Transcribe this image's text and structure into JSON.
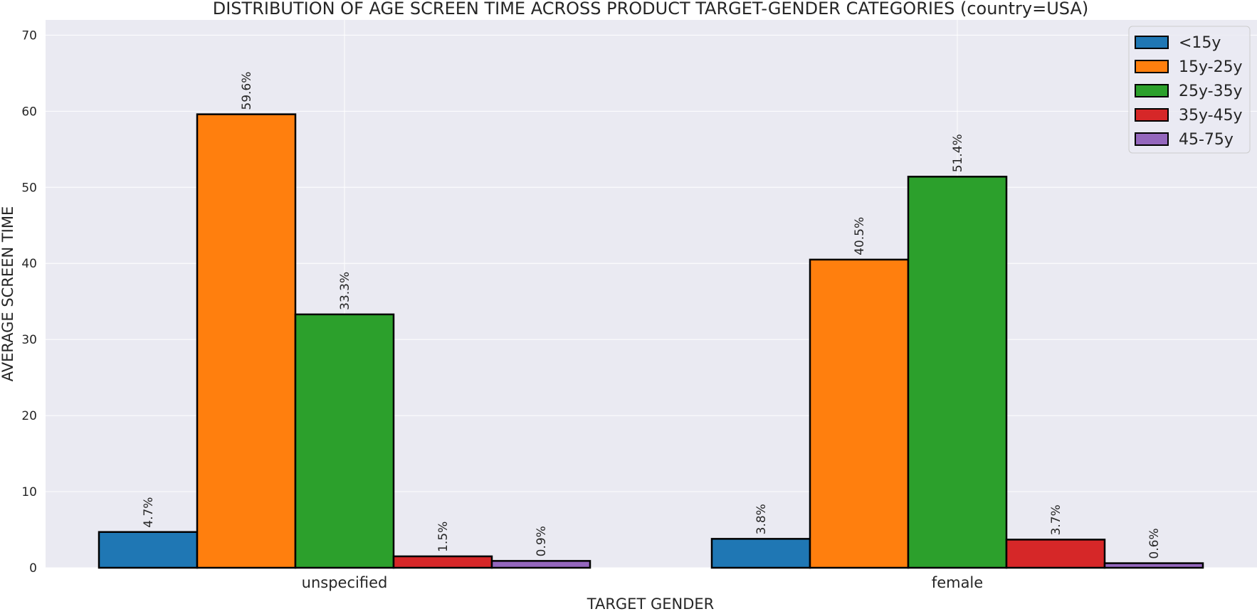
{
  "chart_data": {
    "type": "bar",
    "title": "DISTRIBUTION OF AGE SCREEN TIME ACROSS PRODUCT TARGET-GENDER CATEGORIES (country=USA)",
    "xlabel": "TARGET GENDER",
    "ylabel": "AVERAGE SCREEN TIME",
    "categories": [
      "unspecified",
      "female"
    ],
    "ylim": [
      0,
      72
    ],
    "yticks": [
      0,
      10,
      20,
      30,
      40,
      50,
      60,
      70
    ],
    "grid": true,
    "legend_position": "top-right",
    "series": [
      {
        "name": "<15y",
        "color": "#1f77b4",
        "values": [
          4.7,
          3.8
        ],
        "labels": [
          "4.7%",
          "3.8%"
        ]
      },
      {
        "name": "15y-25y",
        "color": "#ff7f0e",
        "values": [
          59.6,
          40.5
        ],
        "labels": [
          "59.6%",
          "40.5%"
        ]
      },
      {
        "name": "25y-35y",
        "color": "#2ca02c",
        "values": [
          33.3,
          51.4
        ],
        "labels": [
          "33.3%",
          "51.4%"
        ]
      },
      {
        "name": "35y-45y",
        "color": "#d62728",
        "values": [
          1.5,
          3.7
        ],
        "labels": [
          "1.5%",
          "3.7%"
        ]
      },
      {
        "name": "45-75y",
        "color": "#9467bd",
        "values": [
          0.9,
          0.6
        ],
        "labels": [
          "0.9%",
          "0.6%"
        ]
      }
    ],
    "colors": {
      "plot_background": "#eaeaf2",
      "grid": "#ffffff",
      "bar_edge": "#000000"
    }
  }
}
